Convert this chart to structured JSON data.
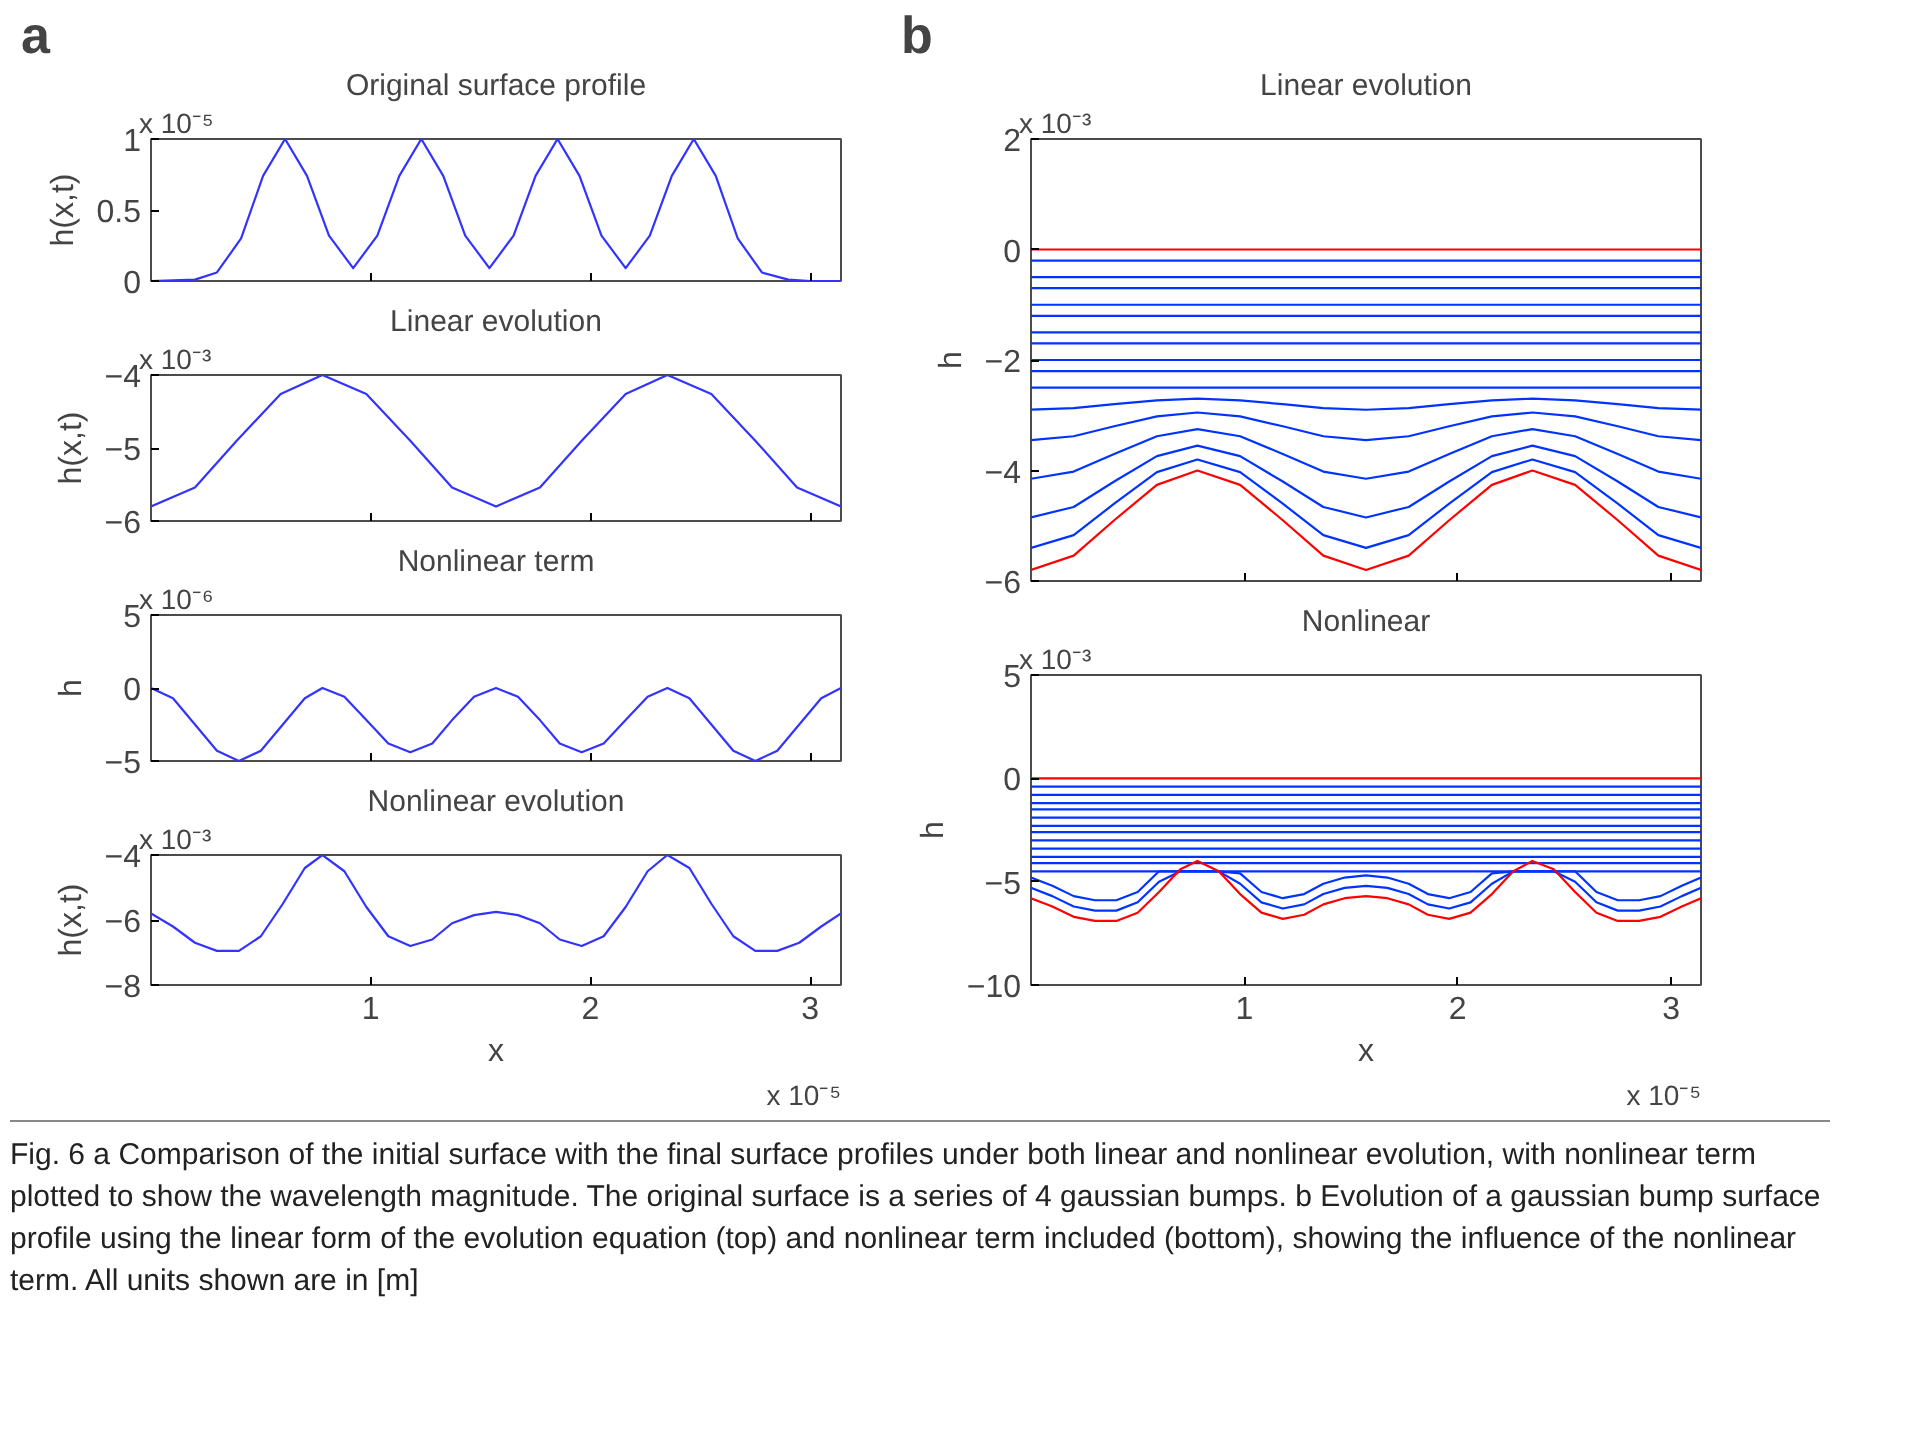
{
  "chart_data": [
    {
      "type": "line",
      "title": "Original surface profile",
      "ylabel": "h(x,t)",
      "annotations": [
        "x 10⁻⁵",
        "a"
      ],
      "xlim": [
        0,
        3.14
      ],
      "xticks": [
        1,
        2,
        3
      ],
      "ylim": [
        0,
        1
      ],
      "yticks": [
        0,
        0.5,
        1
      ],
      "tick_labels": "y",
      "grid": false,
      "x": [
        0,
        0.2,
        0.3,
        0.41,
        0.51,
        0.61,
        0.71,
        0.81,
        0.92,
        1.03,
        1.13,
        1.23,
        1.33,
        1.43,
        1.54,
        1.65,
        1.75,
        1.85,
        1.95,
        2.05,
        2.16,
        2.27,
        2.37,
        2.47,
        2.57,
        2.67,
        2.78,
        2.9,
        3.0,
        3.14
      ],
      "series": [
        {
          "color": "#3333ff",
          "values": [
            0,
            0.01,
            0.06,
            0.3,
            0.74,
            1,
            0.74,
            0.32,
            0.09,
            0.32,
            0.74,
            1,
            0.74,
            0.32,
            0.09,
            0.32,
            0.74,
            1,
            0.74,
            0.32,
            0.09,
            0.32,
            0.74,
            1,
            0.74,
            0.3,
            0.06,
            0.01,
            0,
            0
          ]
        }
      ]
    },
    {
      "type": "line",
      "title": "Linear evolution",
      "ylabel": "h(x,t)",
      "annotations": [
        "x 10⁻³"
      ],
      "xlim": [
        0,
        3.14
      ],
      "xticks": [
        1,
        2,
        3
      ],
      "ylim": [
        -6,
        -4
      ],
      "yticks": [
        -6,
        -5,
        -4
      ],
      "tick_labels": "y",
      "grid": false,
      "x": [
        0,
        0.2,
        0.39,
        0.59,
        0.78,
        0.98,
        1.18,
        1.37,
        1.57,
        1.77,
        1.96,
        2.16,
        2.35,
        2.55,
        2.75,
        2.94,
        3.14
      ],
      "series": [
        {
          "color": "#3333ff",
          "values": [
            -5.8,
            -5.54,
            -4.9,
            -4.26,
            -4.0,
            -4.26,
            -4.9,
            -5.54,
            -5.8,
            -5.54,
            -4.9,
            -4.26,
            -4.0,
            -4.26,
            -4.9,
            -5.54,
            -5.8
          ]
        }
      ]
    },
    {
      "type": "line",
      "title": "Nonlinear term",
      "ylabel": "h",
      "annotations": [
        "x 10⁻⁶"
      ],
      "xlim": [
        0,
        3.14
      ],
      "xticks": [
        1,
        2,
        3
      ],
      "ylim": [
        -5,
        5
      ],
      "yticks": [
        -5,
        0,
        5
      ],
      "tick_labels": "y",
      "grid": false,
      "x": [
        0,
        0.1,
        0.2,
        0.3,
        0.4,
        0.5,
        0.6,
        0.7,
        0.78,
        0.88,
        0.98,
        1.08,
        1.18,
        1.28,
        1.37,
        1.47,
        1.57,
        1.67,
        1.77,
        1.86,
        1.96,
        2.06,
        2.16,
        2.26,
        2.35,
        2.45,
        2.55,
        2.65,
        2.75,
        2.85,
        2.95,
        3.05,
        3.14
      ],
      "series": [
        {
          "color": "#3333ff",
          "values": [
            0,
            -0.7,
            -2.5,
            -4.3,
            -5,
            -4.3,
            -2.5,
            -0.7,
            0,
            -0.6,
            -2.2,
            -3.8,
            -4.4,
            -3.8,
            -2.2,
            -0.6,
            0,
            -0.6,
            -2.2,
            -3.8,
            -4.4,
            -3.8,
            -2.2,
            -0.6,
            0,
            -0.7,
            -2.5,
            -4.3,
            -5,
            -4.3,
            -2.5,
            -0.7,
            0
          ]
        }
      ]
    },
    {
      "type": "line",
      "title": "Nonlinear evolution",
      "xlabel": "x",
      "ylabel": "h(x,t)",
      "annotations": [
        "x 10⁻³",
        "x 10⁻⁵"
      ],
      "xlim": [
        0,
        3.14
      ],
      "xticks": [
        1,
        2,
        3
      ],
      "ylim": [
        -8,
        -4
      ],
      "yticks": [
        -8,
        -6,
        -4
      ],
      "grid": false,
      "x": [
        0,
        0.1,
        0.2,
        0.3,
        0.4,
        0.5,
        0.6,
        0.7,
        0.78,
        0.88,
        0.98,
        1.08,
        1.18,
        1.28,
        1.37,
        1.47,
        1.57,
        1.67,
        1.77,
        1.86,
        1.96,
        2.06,
        2.16,
        2.26,
        2.35,
        2.45,
        2.55,
        2.65,
        2.75,
        2.85,
        2.95,
        3.05,
        3.14
      ],
      "series": [
        {
          "color": "#3333ff",
          "values": [
            -5.8,
            -6.2,
            -6.7,
            -6.95,
            -6.95,
            -6.5,
            -5.5,
            -4.4,
            -4.0,
            -4.5,
            -5.6,
            -6.5,
            -6.8,
            -6.6,
            -6.1,
            -5.85,
            -5.75,
            -5.85,
            -6.1,
            -6.6,
            -6.8,
            -6.5,
            -5.6,
            -4.5,
            -4.0,
            -4.4,
            -5.5,
            -6.5,
            -6.95,
            -6.95,
            -6.7,
            -6.2,
            -5.8
          ]
        }
      ]
    },
    {
      "type": "line",
      "title": "Linear evolution",
      "ylabel": "h",
      "annotations": [
        "x 10⁻³",
        "b"
      ],
      "xlim": [
        0,
        3.14
      ],
      "xticks": [
        1,
        2,
        3
      ],
      "ylim": [
        -6,
        2
      ],
      "yticks": [
        -6,
        -4,
        -2,
        0,
        2
      ],
      "tick_labels": "y",
      "grid": false,
      "x": [
        0,
        0.2,
        0.39,
        0.59,
        0.78,
        0.98,
        1.18,
        1.37,
        1.57,
        1.77,
        1.96,
        2.16,
        2.35,
        2.55,
        2.75,
        2.94,
        3.14
      ],
      "series": [
        {
          "color": "#0033ff",
          "values": [
            -0.2,
            -0.2,
            -0.2,
            -0.2,
            -0.2,
            -0.2,
            -0.2,
            -0.2,
            -0.2,
            -0.2,
            -0.2,
            -0.2,
            -0.2,
            -0.2,
            -0.2,
            -0.2,
            -0.2
          ]
        },
        {
          "color": "#0033ff",
          "values": [
            -0.5,
            -0.5,
            -0.5,
            -0.5,
            -0.5,
            -0.5,
            -0.5,
            -0.5,
            -0.5,
            -0.5,
            -0.5,
            -0.5,
            -0.5,
            -0.5,
            -0.5,
            -0.5,
            -0.5
          ]
        },
        {
          "color": "#0033ff",
          "values": [
            -0.7,
            -0.7,
            -0.7,
            -0.7,
            -0.7,
            -0.7,
            -0.7,
            -0.7,
            -0.7,
            -0.7,
            -0.7,
            -0.7,
            -0.7,
            -0.7,
            -0.7,
            -0.7,
            -0.7
          ]
        },
        {
          "color": "#0033ff",
          "values": [
            -1.0,
            -1.0,
            -1.0,
            -1.0,
            -1.0,
            -1.0,
            -1.0,
            -1.0,
            -1.0,
            -1.0,
            -1.0,
            -1.0,
            -1.0,
            -1.0,
            -1.0,
            -1.0,
            -1.0
          ]
        },
        {
          "color": "#0033ff",
          "values": [
            -1.2,
            -1.2,
            -1.2,
            -1.2,
            -1.2,
            -1.2,
            -1.2,
            -1.2,
            -1.2,
            -1.2,
            -1.2,
            -1.2,
            -1.2,
            -1.2,
            -1.2,
            -1.2,
            -1.2
          ]
        },
        {
          "color": "#0033ff",
          "values": [
            -1.5,
            -1.5,
            -1.5,
            -1.5,
            -1.5,
            -1.5,
            -1.5,
            -1.5,
            -1.5,
            -1.5,
            -1.5,
            -1.5,
            -1.5,
            -1.5,
            -1.5,
            -1.5,
            -1.5
          ]
        },
        {
          "color": "#0033ff",
          "values": [
            -1.7,
            -1.7,
            -1.7,
            -1.7,
            -1.7,
            -1.7,
            -1.7,
            -1.7,
            -1.7,
            -1.7,
            -1.7,
            -1.7,
            -1.7,
            -1.7,
            -1.7,
            -1.7,
            -1.7
          ]
        },
        {
          "color": "#0033ff",
          "values": [
            -2.0,
            -2.0,
            -2.0,
            -2.0,
            -2.0,
            -2.0,
            -2.0,
            -2.0,
            -2.0,
            -2.0,
            -2.0,
            -2.0,
            -2.0,
            -2.0,
            -2.0,
            -2.0,
            -2.0
          ]
        },
        {
          "color": "#0033ff",
          "values": [
            -2.2,
            -2.2,
            -2.2,
            -2.2,
            -2.2,
            -2.2,
            -2.2,
            -2.2,
            -2.2,
            -2.2,
            -2.2,
            -2.2,
            -2.2,
            -2.2,
            -2.2,
            -2.2,
            -2.2
          ]
        },
        {
          "color": "#0033ff",
          "values": [
            -2.5,
            -2.5,
            -2.5,
            -2.5,
            -2.5,
            -2.5,
            -2.5,
            -2.5,
            -2.5,
            -2.5,
            -2.5,
            -2.5,
            -2.5,
            -2.5,
            -2.5,
            -2.5,
            -2.5
          ]
        },
        {
          "color": "#0033ff",
          "values": [
            -2.9,
            -2.87,
            -2.8,
            -2.73,
            -2.7,
            -2.73,
            -2.8,
            -2.87,
            -2.9,
            -2.87,
            -2.8,
            -2.73,
            -2.7,
            -2.73,
            -2.8,
            -2.87,
            -2.9
          ]
        },
        {
          "color": "#0033ff",
          "values": [
            -3.45,
            -3.38,
            -3.2,
            -3.02,
            -2.95,
            -3.02,
            -3.2,
            -3.38,
            -3.45,
            -3.38,
            -3.2,
            -3.02,
            -2.95,
            -3.02,
            -3.2,
            -3.38,
            -3.45
          ]
        },
        {
          "color": "#0033ff",
          "values": [
            -4.15,
            -4.02,
            -3.7,
            -3.38,
            -3.25,
            -3.38,
            -3.7,
            -4.02,
            -4.15,
            -4.02,
            -3.7,
            -3.38,
            -3.25,
            -3.38,
            -3.7,
            -4.02,
            -4.15
          ]
        },
        {
          "color": "#0033ff",
          "values": [
            -4.85,
            -4.66,
            -4.2,
            -3.74,
            -3.55,
            -3.74,
            -4.2,
            -4.66,
            -4.85,
            -4.66,
            -4.2,
            -3.74,
            -3.55,
            -3.74,
            -4.2,
            -4.66,
            -4.85
          ]
        },
        {
          "color": "#0033ff",
          "values": [
            -5.4,
            -5.17,
            -4.6,
            -4.03,
            -3.8,
            -4.03,
            -4.6,
            -5.17,
            -5.4,
            -5.17,
            -4.6,
            -4.03,
            -3.8,
            -4.03,
            -4.6,
            -5.17,
            -5.4
          ]
        },
        {
          "color": "#ff0000",
          "values": [
            0,
            0,
            0,
            0,
            0,
            0,
            0,
            0,
            0,
            0,
            0,
            0,
            0,
            0,
            0,
            0,
            0
          ]
        },
        {
          "color": "#ff0000",
          "values": [
            -5.8,
            -5.54,
            -4.9,
            -4.26,
            -4.0,
            -4.26,
            -4.9,
            -5.54,
            -5.8,
            -5.54,
            -4.9,
            -4.26,
            -4.0,
            -4.26,
            -4.9,
            -5.54,
            -5.8
          ]
        }
      ]
    },
    {
      "type": "line",
      "title": "Nonlinear",
      "xlabel": "x",
      "ylabel": "h",
      "annotations": [
        "x 10⁻³",
        "x 10⁻⁵"
      ],
      "xlim": [
        0,
        3.14
      ],
      "xticks": [
        1,
        2,
        3
      ],
      "ylim": [
        -10,
        5
      ],
      "yticks": [
        -10,
        -5,
        0,
        5
      ],
      "grid": false,
      "x": [
        0,
        0.1,
        0.2,
        0.3,
        0.4,
        0.5,
        0.6,
        0.7,
        0.78,
        0.88,
        0.98,
        1.08,
        1.18,
        1.28,
        1.37,
        1.47,
        1.57,
        1.67,
        1.77,
        1.86,
        1.96,
        2.06,
        2.16,
        2.26,
        2.35,
        2.45,
        2.55,
        2.65,
        2.75,
        2.85,
        2.95,
        3.05,
        3.14
      ],
      "series": [
        {
          "color": "#0033ff",
          "values": [
            -0.4,
            -0.4,
            -0.4,
            -0.4,
            -0.4,
            -0.4,
            -0.4,
            -0.4,
            -0.4,
            -0.4,
            -0.4,
            -0.4,
            -0.4,
            -0.4,
            -0.4,
            -0.4,
            -0.4,
            -0.4,
            -0.4,
            -0.4,
            -0.4,
            -0.4,
            -0.4,
            -0.4,
            -0.4,
            -0.4,
            -0.4,
            -0.4,
            -0.4,
            -0.4,
            -0.4,
            -0.4,
            -0.4
          ]
        },
        {
          "color": "#0033ff",
          "values": [
            -0.8,
            -0.8,
            -0.8,
            -0.8,
            -0.8,
            -0.8,
            -0.8,
            -0.8,
            -0.8,
            -0.8,
            -0.8,
            -0.8,
            -0.8,
            -0.8,
            -0.8,
            -0.8,
            -0.8,
            -0.8,
            -0.8,
            -0.8,
            -0.8,
            -0.8,
            -0.8,
            -0.8,
            -0.8,
            -0.8,
            -0.8,
            -0.8,
            -0.8,
            -0.8,
            -0.8,
            -0.8,
            -0.8
          ]
        },
        {
          "color": "#0033ff",
          "values": [
            -1.2,
            -1.2,
            -1.2,
            -1.2,
            -1.2,
            -1.2,
            -1.2,
            -1.2,
            -1.2,
            -1.2,
            -1.2,
            -1.2,
            -1.2,
            -1.2,
            -1.2,
            -1.2,
            -1.2,
            -1.2,
            -1.2,
            -1.2,
            -1.2,
            -1.2,
            -1.2,
            -1.2,
            -1.2,
            -1.2,
            -1.2,
            -1.2,
            -1.2,
            -1.2,
            -1.2,
            -1.2,
            -1.2
          ]
        },
        {
          "color": "#0033ff",
          "values": [
            -1.5,
            -1.5,
            -1.5,
            -1.5,
            -1.5,
            -1.5,
            -1.5,
            -1.5,
            -1.5,
            -1.5,
            -1.5,
            -1.5,
            -1.5,
            -1.5,
            -1.5,
            -1.5,
            -1.5,
            -1.5,
            -1.5,
            -1.5,
            -1.5,
            -1.5,
            -1.5,
            -1.5,
            -1.5,
            -1.5,
            -1.5,
            -1.5,
            -1.5,
            -1.5,
            -1.5,
            -1.5,
            -1.5
          ]
        },
        {
          "color": "#0033ff",
          "values": [
            -1.9,
            -1.9,
            -1.9,
            -1.9,
            -1.9,
            -1.9,
            -1.9,
            -1.9,
            -1.9,
            -1.9,
            -1.9,
            -1.9,
            -1.9,
            -1.9,
            -1.9,
            -1.9,
            -1.9,
            -1.9,
            -1.9,
            -1.9,
            -1.9,
            -1.9,
            -1.9,
            -1.9,
            -1.9,
            -1.9,
            -1.9,
            -1.9,
            -1.9,
            -1.9,
            -1.9,
            -1.9,
            -1.9
          ]
        },
        {
          "color": "#0033ff",
          "values": [
            -2.3,
            -2.3,
            -2.3,
            -2.3,
            -2.3,
            -2.3,
            -2.3,
            -2.3,
            -2.3,
            -2.3,
            -2.3,
            -2.3,
            -2.3,
            -2.3,
            -2.3,
            -2.3,
            -2.3,
            -2.3,
            -2.3,
            -2.3,
            -2.3,
            -2.3,
            -2.3,
            -2.3,
            -2.3,
            -2.3,
            -2.3,
            -2.3,
            -2.3,
            -2.3,
            -2.3,
            -2.3,
            -2.3
          ]
        },
        {
          "color": "#0033ff",
          "values": [
            -2.6,
            -2.6,
            -2.6,
            -2.6,
            -2.6,
            -2.6,
            -2.6,
            -2.6,
            -2.6,
            -2.6,
            -2.6,
            -2.6,
            -2.6,
            -2.6,
            -2.6,
            -2.6,
            -2.6,
            -2.6,
            -2.6,
            -2.6,
            -2.6,
            -2.6,
            -2.6,
            -2.6,
            -2.6,
            -2.6,
            -2.6,
            -2.6,
            -2.6,
            -2.6,
            -2.6,
            -2.6,
            -2.6
          ]
        },
        {
          "color": "#0033ff",
          "values": [
            -3.0,
            -3.0,
            -3.0,
            -3.0,
            -3.0,
            -3.0,
            -3.0,
            -3.0,
            -3.0,
            -3.0,
            -3.0,
            -3.0,
            -3.0,
            -3.0,
            -3.0,
            -3.0,
            -3.0,
            -3.0,
            -3.0,
            -3.0,
            -3.0,
            -3.0,
            -3.0,
            -3.0,
            -3.0,
            -3.0,
            -3.0,
            -3.0,
            -3.0,
            -3.0,
            -3.0,
            -3.0,
            -3.0
          ]
        },
        {
          "color": "#0033ff",
          "values": [
            -3.4,
            -3.4,
            -3.4,
            -3.4,
            -3.4,
            -3.4,
            -3.4,
            -3.4,
            -3.4,
            -3.4,
            -3.4,
            -3.4,
            -3.4,
            -3.4,
            -3.4,
            -3.4,
            -3.4,
            -3.4,
            -3.4,
            -3.4,
            -3.4,
            -3.4,
            -3.4,
            -3.4,
            -3.4,
            -3.4,
            -3.4,
            -3.4,
            -3.4,
            -3.4,
            -3.4,
            -3.4,
            -3.4
          ]
        },
        {
          "color": "#0033ff",
          "values": [
            -3.8,
            -3.8,
            -3.8,
            -3.8,
            -3.8,
            -3.8,
            -3.8,
            -3.8,
            -3.8,
            -3.8,
            -3.8,
            -3.8,
            -3.8,
            -3.8,
            -3.8,
            -3.8,
            -3.8,
            -3.8,
            -3.8,
            -3.8,
            -3.8,
            -3.8,
            -3.8,
            -3.8,
            -3.8,
            -3.8,
            -3.8,
            -3.8,
            -3.8,
            -3.8,
            -3.8,
            -3.8,
            -3.8
          ]
        },
        {
          "color": "#0033ff",
          "values": [
            -4.1,
            -4.1,
            -4.1,
            -4.1,
            -4.1,
            -4.1,
            -4.1,
            -4.1,
            -4.1,
            -4.1,
            -4.1,
            -4.1,
            -4.1,
            -4.1,
            -4.1,
            -4.1,
            -4.1,
            -4.1,
            -4.1,
            -4.1,
            -4.1,
            -4.1,
            -4.1,
            -4.1,
            -4.1,
            -4.1,
            -4.1,
            -4.1,
            -4.1,
            -4.1,
            -4.1,
            -4.1,
            -4.1
          ]
        },
        {
          "color": "#0033ff",
          "values": [
            -4.5,
            -4.5,
            -4.5,
            -4.5,
            -4.5,
            -4.5,
            -4.5,
            -4.5,
            -4.5,
            -4.5,
            -4.5,
            -4.5,
            -4.5,
            -4.5,
            -4.5,
            -4.5,
            -4.5,
            -4.5,
            -4.5,
            -4.5,
            -4.5,
            -4.5,
            -4.5,
            -4.5,
            -4.5,
            -4.5,
            -4.5,
            -4.5,
            -4.5,
            -4.5,
            -4.5,
            -4.5,
            -4.5
          ]
        },
        {
          "color": "#0033ff",
          "values": [
            -4.8,
            -5.2,
            -5.7,
            -5.9,
            -5.9,
            -5.5,
            -4.5,
            -4.5,
            -4.5,
            -4.5,
            -4.6,
            -5.5,
            -5.8,
            -5.6,
            -5.1,
            -4.8,
            -4.7,
            -4.8,
            -5.1,
            -5.6,
            -5.8,
            -5.5,
            -4.6,
            -4.5,
            -4.5,
            -4.5,
            -4.5,
            -5.5,
            -5.9,
            -5.9,
            -5.7,
            -5.2,
            -4.8
          ]
        },
        {
          "color": "#0033ff",
          "values": [
            -5.3,
            -5.7,
            -6.2,
            -6.4,
            -6.4,
            -6.0,
            -5.0,
            -4.5,
            -4.5,
            -4.5,
            -5.1,
            -6.0,
            -6.3,
            -6.1,
            -5.6,
            -5.3,
            -5.2,
            -5.3,
            -5.6,
            -6.1,
            -6.3,
            -6.0,
            -5.1,
            -4.5,
            -4.5,
            -4.5,
            -5.0,
            -6.0,
            -6.4,
            -6.4,
            -6.2,
            -5.7,
            -5.3
          ]
        },
        {
          "color": "#ff0000",
          "values": [
            0,
            0,
            0,
            0,
            0,
            0,
            0,
            0,
            0,
            0,
            0,
            0,
            0,
            0,
            0,
            0,
            0,
            0,
            0,
            0,
            0,
            0,
            0,
            0,
            0,
            0,
            0,
            0,
            0,
            0,
            0,
            0,
            0
          ]
        },
        {
          "color": "#ff0000",
          "values": [
            -5.8,
            -6.2,
            -6.7,
            -6.9,
            -6.9,
            -6.5,
            -5.5,
            -4.4,
            -4.0,
            -4.5,
            -5.6,
            -6.5,
            -6.8,
            -6.6,
            -6.1,
            -5.8,
            -5.7,
            -5.8,
            -6.1,
            -6.6,
            -6.8,
            -6.5,
            -5.6,
            -4.5,
            -4.0,
            -4.4,
            -5.5,
            -6.5,
            -6.9,
            -6.9,
            -6.7,
            -6.2,
            -5.8
          ]
        }
      ]
    },
    {
      "type": "other",
      "annotations": [
        "Fig. 6 a Comparison of the initial surface with the final surface profiles under both linear and nonlinear evolution, with nonlinear term plotted to show the wavelength magnitude. The original surface is a series of 4 gaussian bumps. b Evolution of a gaussian bump surface profile using the linear form of the evolution equation (top) and nonlinear term included (bottom), showing the influence of the nonlinear term. All units shown are in [m]"
      ]
    }
  ]
}
